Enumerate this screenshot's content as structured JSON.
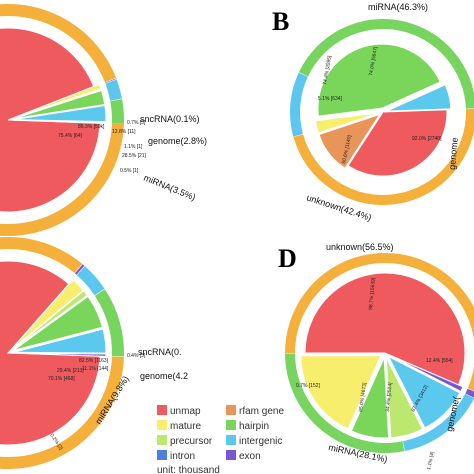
{
  "legend": {
    "items": [
      {
        "key": "unmap",
        "label": "unmap",
        "color": "#ef5a5e"
      },
      {
        "key": "rfam",
        "label": "rfam gene",
        "color": "#e9955a"
      },
      {
        "key": "mature",
        "label": "mature",
        "color": "#f7ee6e"
      },
      {
        "key": "hairpin",
        "label": "hairpin",
        "color": "#79d65a"
      },
      {
        "key": "precursor",
        "label": "precursor",
        "color": "#bde870"
      },
      {
        "key": "intergenic",
        "label": "intergenic",
        "color": "#5bc8ee"
      },
      {
        "key": "intron",
        "label": "intron",
        "color": "#4f7fdc"
      },
      {
        "key": "exon",
        "label": "exon",
        "color": "#7a55d6"
      }
    ],
    "unit": "unit: thousand"
  },
  "colors": {
    "outer_orange": "#f4b03a",
    "outer_green": "#77d45e",
    "outer_blue": "#5cc6ee",
    "outer_purple": "#7a55d6"
  },
  "chart_data": [
    {
      "panel": "A",
      "letter": "",
      "type": "pie",
      "inner": [
        {
          "cat": "unmap",
          "value": 93.5
        },
        {
          "cat": "mature",
          "value": 0.8
        },
        {
          "cat": "precursor",
          "value": 0.2
        },
        {
          "cat": "hairpin",
          "value": 2.5
        },
        {
          "cat": "intergenic",
          "value": 2.8
        },
        {
          "cat": "exon",
          "value": 0.2
        }
      ],
      "inner_labels": [
        "86.3% [59k]",
        "0.7% [5]",
        "12.8% [11]",
        "75.4% [64]",
        "1.1% [1]",
        "28.5% [21]",
        "0.5% [1]"
      ],
      "outer": [
        {
          "label": "",
          "value": 93.6,
          "color": "outer_orange"
        },
        {
          "label": "sncRNA(0.1%)",
          "value": 0.1,
          "color": "outer_purple"
        },
        {
          "label": "genome(2.8%)",
          "value": 2.8,
          "color": "outer_blue"
        },
        {
          "label": "miRNA(3.5%)",
          "value": 3.5,
          "color": "outer_green"
        }
      ]
    },
    {
      "panel": "B",
      "letter": "B",
      "type": "pie",
      "inner": [
        {
          "cat": "unmap",
          "value": 28.1
        },
        {
          "cat": "rfam",
          "value": 8.7
        },
        {
          "cat": "mature",
          "value": 2.5
        },
        {
          "cat": "hairpin",
          "value": 36.6
        },
        {
          "cat": "intergenic",
          "value": 5.0
        }
      ],
      "inner_labels": [
        "74.0% [5647]",
        "74.4% [2095]",
        "5.1% [634]",
        "50.6% [1140]",
        "92.0% [2748]"
      ],
      "outer": [
        {
          "label": "miRNA(46.3%)",
          "value": 46.3,
          "color": "outer_orange"
        },
        {
          "label": "genome",
          "value": 11.3,
          "color": "outer_blue"
        },
        {
          "label": "unknown(42.4%)",
          "value": 42.4,
          "color": "outer_green"
        }
      ]
    },
    {
      "panel": "C",
      "letter": "",
      "type": "pie",
      "inner": [
        {
          "cat": "unmap",
          "value": 85.6
        },
        {
          "cat": "mature",
          "value": 2.5
        },
        {
          "cat": "precursor",
          "value": 1.0
        },
        {
          "cat": "hairpin",
          "value": 5.9
        },
        {
          "cat": "intergenic",
          "value": 4.2
        },
        {
          "cat": "exon",
          "value": 0.4
        }
      ],
      "inner_labels": [
        "82.5% [1163]",
        "0.4% [3]",
        "11.1% [144]",
        "29.4% [213]",
        "70.1% [468]",
        "0.2% [2]"
      ],
      "outer": [
        {
          "label": "",
          "value": 85.4,
          "color": "outer_orange"
        },
        {
          "label": "sncRNA(0.",
          "value": 0.4,
          "color": "outer_purple"
        },
        {
          "label": "genome(4.2",
          "value": 4.2,
          "color": "outer_blue"
        },
        {
          "label": "miRNA(9.8%)",
          "value": 9.8,
          "color": "outer_green"
        }
      ]
    },
    {
      "panel": "D",
      "letter": "D",
      "type": "pie",
      "inner": [
        {
          "cat": "unmap",
          "value": 56.5
        },
        {
          "cat": "exon",
          "value": 1.0
        },
        {
          "cat": "intergenic",
          "value": 10.0
        },
        {
          "cat": "precursor",
          "value": 6.6
        },
        {
          "cat": "hairpin",
          "value": 7.6
        },
        {
          "cat": "mature",
          "value": 18.3
        }
      ],
      "inner_labels": [
        "98.7% [15639]",
        "12.4% [554]",
        "87.4% [3412]",
        "34.4% [2524]",
        "65.0% [4673]",
        "0.7% [152]",
        "1.1% [4]"
      ],
      "outer": [
        {
          "label": "unknown(56.5%)",
          "value": 56.5,
          "color": "outer_orange"
        },
        {
          "label": "",
          "value": 1.0,
          "color": "outer_purple"
        },
        {
          "label": "genome(",
          "value": 14.4,
          "color": "outer_blue"
        },
        {
          "label": "miRNA(28.1%)",
          "value": 28.1,
          "color": "outer_green"
        }
      ]
    }
  ]
}
